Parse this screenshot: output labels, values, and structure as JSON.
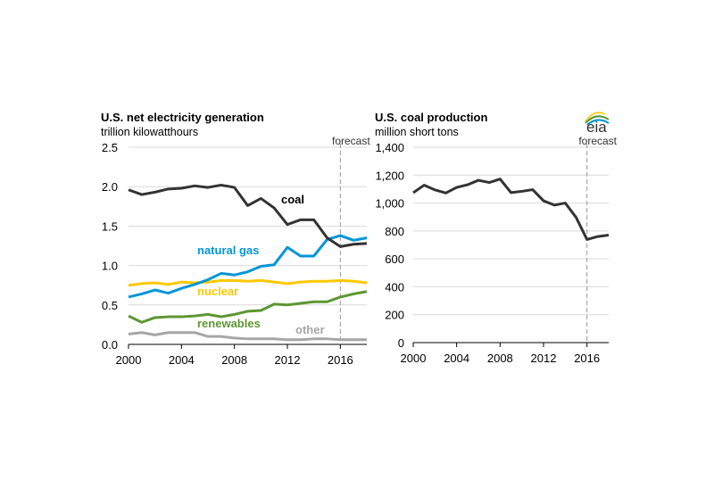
{
  "chart_data": [
    {
      "type": "line",
      "title": "U.S. net electricity generation",
      "subtitle": "trillion kilowatthours",
      "x": [
        2000,
        2001,
        2002,
        2003,
        2004,
        2005,
        2006,
        2007,
        2008,
        2009,
        2010,
        2011,
        2012,
        2013,
        2014,
        2015,
        2016,
        2017,
        2018
      ],
      "xticks": [
        "2000",
        "2004",
        "2008",
        "2012",
        "2016"
      ],
      "yticks": [
        "0.0",
        "0.5",
        "1.0",
        "1.5",
        "2.0",
        "2.5"
      ],
      "ylim": [
        0,
        2.5
      ],
      "xlim": [
        2000,
        2018
      ],
      "grid": true,
      "forecast_label": "forecast",
      "forecast_start": 2016,
      "series": [
        {
          "name": "coal",
          "color": "#333333",
          "values": [
            1.96,
            1.9,
            1.93,
            1.97,
            1.98,
            2.01,
            1.99,
            2.02,
            1.99,
            1.76,
            1.85,
            1.73,
            1.52,
            1.58,
            1.58,
            1.35,
            1.24,
            1.27,
            1.28
          ]
        },
        {
          "name": "natural gas",
          "color": "#0096d7",
          "values": [
            0.6,
            0.64,
            0.69,
            0.65,
            0.71,
            0.76,
            0.82,
            0.9,
            0.88,
            0.92,
            0.99,
            1.01,
            1.23,
            1.12,
            1.12,
            1.33,
            1.38,
            1.32,
            1.35
          ]
        },
        {
          "name": "nuclear",
          "color": "#ffc800",
          "values": [
            0.75,
            0.77,
            0.78,
            0.76,
            0.79,
            0.78,
            0.79,
            0.81,
            0.81,
            0.8,
            0.81,
            0.79,
            0.77,
            0.79,
            0.8,
            0.8,
            0.81,
            0.8,
            0.78
          ]
        },
        {
          "name": "renewables",
          "color": "#5d9732",
          "values": [
            0.36,
            0.28,
            0.34,
            0.35,
            0.35,
            0.36,
            0.38,
            0.35,
            0.38,
            0.42,
            0.43,
            0.51,
            0.5,
            0.52,
            0.54,
            0.54,
            0.6,
            0.64,
            0.67
          ]
        },
        {
          "name": "other",
          "color": "#a6a6a6",
          "values": [
            0.13,
            0.15,
            0.12,
            0.15,
            0.15,
            0.15,
            0.1,
            0.1,
            0.08,
            0.07,
            0.07,
            0.07,
            0.06,
            0.06,
            0.07,
            0.07,
            0.06,
            0.06,
            0.06
          ]
        }
      ]
    },
    {
      "type": "line",
      "title": "U.S. coal production",
      "subtitle": "million short tons",
      "x": [
        2000,
        2001,
        2002,
        2003,
        2004,
        2005,
        2006,
        2007,
        2008,
        2009,
        2010,
        2011,
        2012,
        2013,
        2014,
        2015,
        2016,
        2017,
        2018
      ],
      "xticks": [
        "2000",
        "2004",
        "2008",
        "2012",
        "2016"
      ],
      "yticks": [
        "0",
        "200",
        "400",
        "600",
        "800",
        "1,000",
        "1,200",
        "1,400"
      ],
      "ylim": [
        0,
        1400
      ],
      "xlim": [
        2000,
        2018
      ],
      "grid": true,
      "forecast_label": "forecast",
      "forecast_start": 2016,
      "series": [
        {
          "color": "#333333",
          "values": [
            1074,
            1128,
            1094,
            1072,
            1112,
            1131,
            1163,
            1147,
            1172,
            1075,
            1084,
            1096,
            1016,
            985,
            1000,
            897,
            739,
            760,
            770
          ]
        }
      ]
    }
  ],
  "logo": {
    "text": "eia",
    "colors": [
      "#0096d7",
      "#5d9732",
      "#ffc800"
    ]
  }
}
